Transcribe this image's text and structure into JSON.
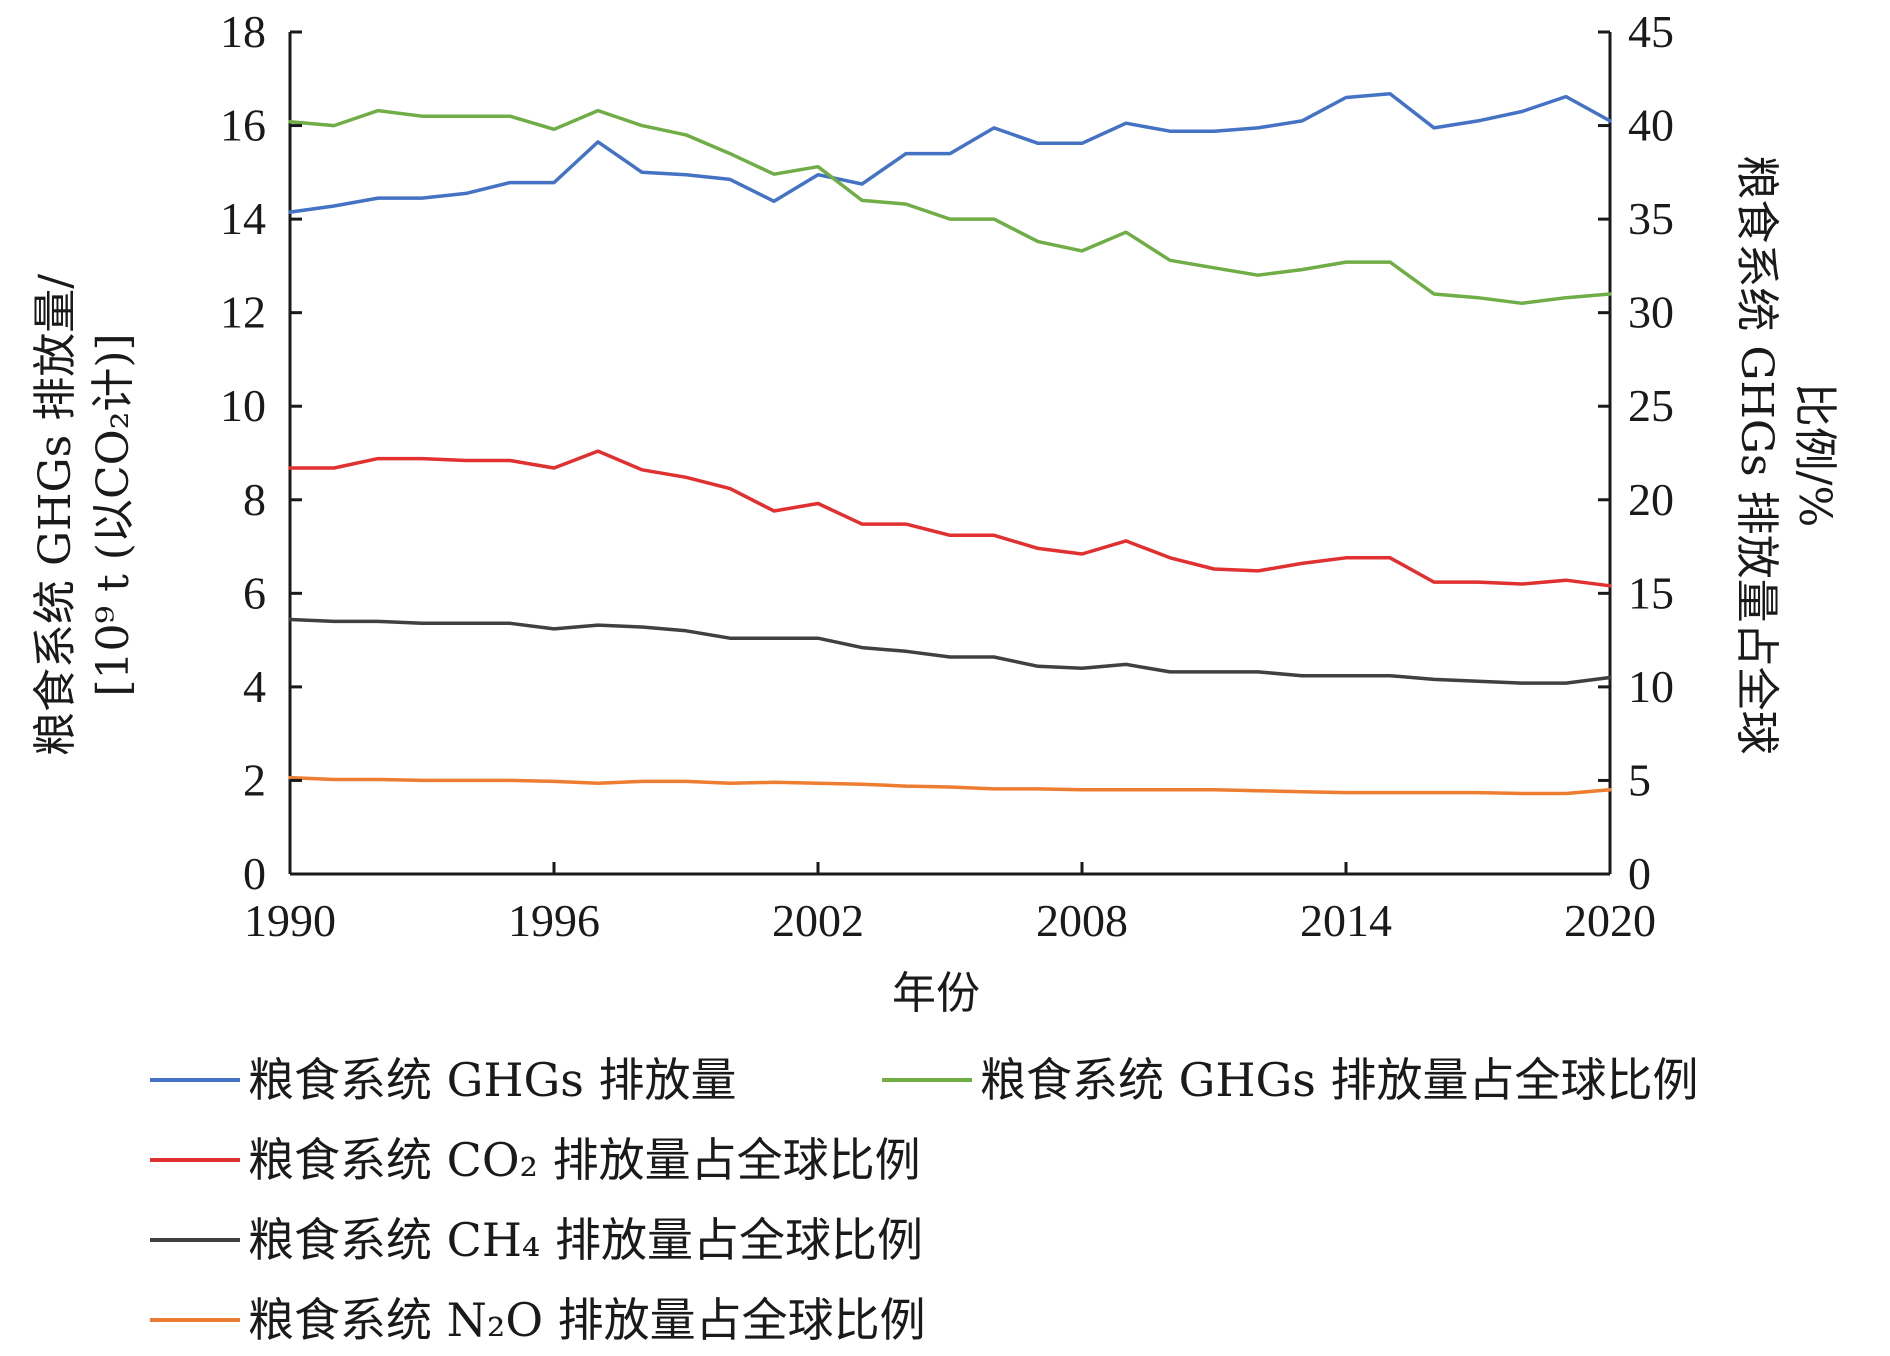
{
  "chart_data": {
    "type": "line",
    "xlabel": "年份",
    "ylabel_left_line1": "粮食系统 GHGs 排放量/",
    "ylabel_left_line2": "[10⁹ t (以CO₂计)]",
    "ylabel_right_line1": "粮食系统 GHGs 排放量占全球",
    "ylabel_right_line2": "比例/%",
    "xlim": [
      1990,
      2020
    ],
    "x_ticks": [
      "1990",
      "1996",
      "2002",
      "2008",
      "2014",
      "2020"
    ],
    "ylim_left": [
      0,
      18
    ],
    "y_ticks_left": [
      "0",
      "2",
      "4",
      "6",
      "8",
      "10",
      "12",
      "14",
      "16",
      "18"
    ],
    "ylim_right": [
      0,
      45
    ],
    "y_ticks_right": [
      "0",
      "5",
      "10",
      "15",
      "20",
      "25",
      "30",
      "35",
      "40",
      "45"
    ],
    "grid": false,
    "legend_position": "bottom",
    "x": [
      1990,
      1991,
      1992,
      1993,
      1994,
      1995,
      1996,
      1997,
      1998,
      1999,
      2000,
      2001,
      2002,
      2003,
      2004,
      2005,
      2006,
      2007,
      2008,
      2009,
      2010,
      2011,
      2012,
      2013,
      2014,
      2015,
      2016,
      2017,
      2018,
      2019,
      2020
    ],
    "series": [
      {
        "name": "粮食系统 GHGs 排放量",
        "axis": "left",
        "color": "#4472c4",
        "values": [
          14.15,
          14.28,
          14.45,
          14.45,
          14.55,
          14.78,
          14.78,
          15.65,
          15.0,
          14.95,
          14.85,
          14.38,
          14.95,
          14.75,
          15.4,
          15.4,
          15.95,
          15.62,
          15.62,
          16.05,
          15.88,
          15.88,
          15.95,
          16.1,
          16.6,
          16.68,
          15.95,
          16.1,
          16.3,
          16.62,
          16.1
        ]
      },
      {
        "name": "粮食系统 GHGs 排放量占全球比例",
        "axis": "right",
        "color": "#70ad47",
        "values": [
          40.2,
          40.0,
          40.8,
          40.5,
          40.5,
          40.5,
          39.8,
          40.8,
          40.0,
          39.5,
          38.5,
          37.4,
          37.8,
          36.0,
          35.8,
          35.0,
          35.0,
          33.8,
          33.3,
          34.3,
          32.8,
          32.4,
          32.0,
          32.3,
          32.7,
          32.7,
          31.0,
          30.8,
          30.5,
          30.8,
          31.0
        ]
      },
      {
        "name": "粮食系统 CO₂ 排放量占全球比例",
        "axis": "right",
        "color": "#e03030",
        "values": [
          21.7,
          21.7,
          22.2,
          22.2,
          22.1,
          22.1,
          21.7,
          22.6,
          21.6,
          21.2,
          20.6,
          19.4,
          19.8,
          18.7,
          18.7,
          18.1,
          18.1,
          17.4,
          17.1,
          17.8,
          16.9,
          16.3,
          16.2,
          16.6,
          16.9,
          16.9,
          15.6,
          15.6,
          15.5,
          15.7,
          15.4
        ]
      },
      {
        "name": "粮食系统 CH₄ 排放量占全球比例",
        "axis": "right",
        "color": "#404040",
        "values": [
          13.6,
          13.5,
          13.5,
          13.4,
          13.4,
          13.4,
          13.1,
          13.3,
          13.2,
          13.0,
          12.6,
          12.6,
          12.6,
          12.1,
          11.9,
          11.6,
          11.6,
          11.1,
          11.0,
          11.2,
          10.8,
          10.8,
          10.8,
          10.6,
          10.6,
          10.6,
          10.4,
          10.3,
          10.2,
          10.2,
          10.5
        ]
      },
      {
        "name": "粮食系统 N₂O 排放量占全球比例",
        "axis": "right",
        "color": "#ed7d31",
        "values": [
          5.15,
          5.05,
          5.05,
          5.0,
          5.0,
          5.0,
          4.95,
          4.85,
          4.95,
          4.95,
          4.85,
          4.9,
          4.85,
          4.8,
          4.7,
          4.65,
          4.55,
          4.55,
          4.5,
          4.5,
          4.5,
          4.5,
          4.45,
          4.4,
          4.35,
          4.35,
          4.35,
          4.35,
          4.3,
          4.3,
          4.5
        ]
      }
    ]
  }
}
